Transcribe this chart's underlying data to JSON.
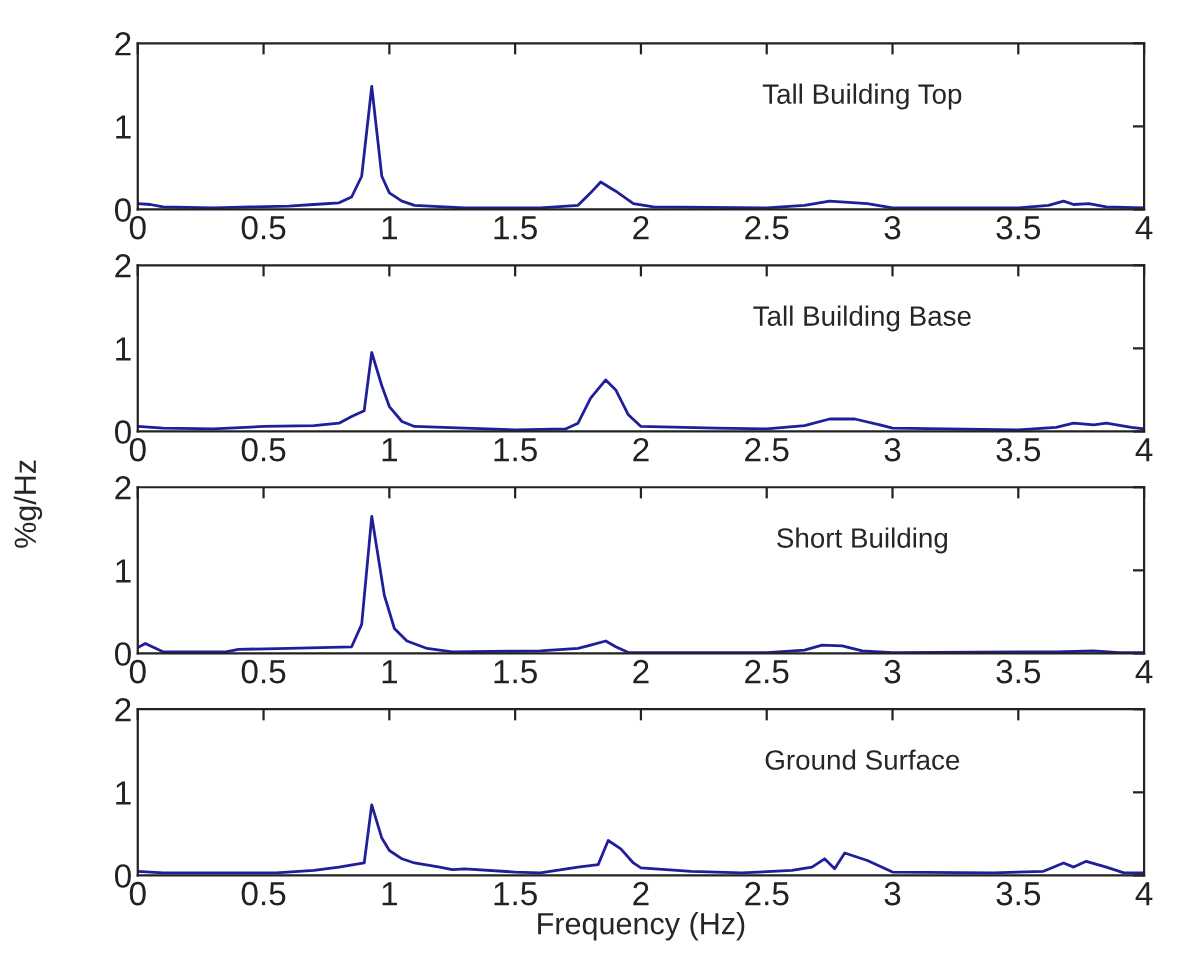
{
  "chart_data": [
    {
      "type": "line",
      "annotations": [
        "Tall Building Top"
      ],
      "xlim": [
        0,
        4
      ],
      "ylim": [
        0,
        2
      ],
      "xticks": [
        0,
        0.5,
        1,
        1.5,
        2,
        2.5,
        3,
        3.5,
        4
      ],
      "yticks": [
        0,
        1,
        2
      ],
      "grid": false,
      "series": [
        {
          "color": "#1f1f9a",
          "x": [
            0,
            0.05,
            0.1,
            0.3,
            0.45,
            0.6,
            0.7,
            0.8,
            0.85,
            0.89,
            0.93,
            0.97,
            1.0,
            1.05,
            1.1,
            1.3,
            1.6,
            1.75,
            1.8,
            1.84,
            1.9,
            1.97,
            2.05,
            2.5,
            2.65,
            2.75,
            2.9,
            3.0,
            3.5,
            3.62,
            3.68,
            3.72,
            3.78,
            3.85,
            4.0
          ],
          "values": [
            0.07,
            0.06,
            0.03,
            0.02,
            0.03,
            0.04,
            0.06,
            0.08,
            0.15,
            0.4,
            1.48,
            0.4,
            0.2,
            0.1,
            0.05,
            0.02,
            0.02,
            0.05,
            0.2,
            0.33,
            0.22,
            0.07,
            0.03,
            0.02,
            0.05,
            0.1,
            0.07,
            0.02,
            0.02,
            0.05,
            0.1,
            0.06,
            0.07,
            0.03,
            0.02
          ]
        }
      ]
    },
    {
      "type": "line",
      "annotations": [
        "Tall Building Base"
      ],
      "xlim": [
        0,
        4
      ],
      "ylim": [
        0,
        2
      ],
      "xticks": [
        0,
        0.5,
        1,
        1.5,
        2,
        2.5,
        3,
        3.5,
        4
      ],
      "yticks": [
        0,
        1,
        2
      ],
      "grid": false,
      "series": [
        {
          "color": "#1f1f9a",
          "x": [
            0,
            0.1,
            0.3,
            0.5,
            0.7,
            0.8,
            0.85,
            0.9,
            0.93,
            0.97,
            1.0,
            1.05,
            1.1,
            1.3,
            1.5,
            1.7,
            1.75,
            1.8,
            1.86,
            1.9,
            1.95,
            2.0,
            2.3,
            2.5,
            2.65,
            2.75,
            2.85,
            2.95,
            3.0,
            3.5,
            3.65,
            3.72,
            3.8,
            3.85,
            3.95,
            4.0
          ],
          "values": [
            0.06,
            0.04,
            0.03,
            0.06,
            0.07,
            0.1,
            0.18,
            0.25,
            0.95,
            0.55,
            0.3,
            0.12,
            0.06,
            0.04,
            0.02,
            0.03,
            0.1,
            0.4,
            0.62,
            0.5,
            0.2,
            0.06,
            0.04,
            0.03,
            0.07,
            0.15,
            0.15,
            0.08,
            0.04,
            0.02,
            0.05,
            0.1,
            0.08,
            0.1,
            0.05,
            0.03
          ]
        }
      ]
    },
    {
      "type": "line",
      "ylabel": "%g/Hz",
      "annotations": [
        "Short Building"
      ],
      "xlim": [
        0,
        4
      ],
      "ylim": [
        0,
        2
      ],
      "xticks": [
        0,
        0.5,
        1,
        1.5,
        2,
        2.5,
        3,
        3.5,
        4
      ],
      "yticks": [
        0,
        1,
        2
      ],
      "grid": false,
      "series": [
        {
          "color": "#1f1f9a",
          "x": [
            0,
            0.03,
            0.1,
            0.35,
            0.4,
            0.6,
            0.85,
            0.89,
            0.93,
            0.98,
            1.02,
            1.07,
            1.15,
            1.25,
            1.6,
            1.75,
            1.8,
            1.86,
            1.9,
            1.95,
            2.5,
            2.65,
            2.72,
            2.8,
            2.88,
            3.0,
            3.65,
            3.8,
            3.9,
            4.0
          ],
          "values": [
            0.07,
            0.12,
            0.02,
            0.02,
            0.05,
            0.06,
            0.08,
            0.35,
            1.65,
            0.7,
            0.3,
            0.15,
            0.06,
            0.02,
            0.03,
            0.06,
            0.1,
            0.15,
            0.08,
            0.01,
            0.01,
            0.04,
            0.1,
            0.09,
            0.03,
            0.01,
            0.02,
            0.03,
            0.01,
            0.01
          ]
        }
      ]
    },
    {
      "type": "line",
      "xlabel": "Frequency (Hz)",
      "annotations": [
        "Ground Surface"
      ],
      "xlim": [
        0,
        4
      ],
      "ylim": [
        0,
        2
      ],
      "xticks": [
        0,
        0.5,
        1,
        1.5,
        2,
        2.5,
        3,
        3.5,
        4
      ],
      "yticks": [
        0,
        1,
        2
      ],
      "grid": false,
      "series": [
        {
          "color": "#1f1f9a",
          "x": [
            0,
            0.1,
            0.55,
            0.7,
            0.8,
            0.9,
            0.93,
            0.97,
            1.0,
            1.05,
            1.1,
            1.2,
            1.25,
            1.3,
            1.5,
            1.6,
            1.75,
            1.83,
            1.87,
            1.92,
            1.97,
            2.0,
            2.2,
            2.4,
            2.6,
            2.68,
            2.73,
            2.77,
            2.81,
            2.9,
            3.0,
            3.4,
            3.6,
            3.68,
            3.72,
            3.77,
            3.85,
            3.92,
            4.0
          ],
          "values": [
            0.05,
            0.03,
            0.03,
            0.06,
            0.1,
            0.15,
            0.85,
            0.45,
            0.3,
            0.2,
            0.15,
            0.1,
            0.07,
            0.08,
            0.04,
            0.03,
            0.1,
            0.13,
            0.42,
            0.32,
            0.15,
            0.09,
            0.05,
            0.03,
            0.06,
            0.1,
            0.2,
            0.08,
            0.27,
            0.18,
            0.04,
            0.03,
            0.05,
            0.15,
            0.1,
            0.17,
            0.1,
            0.03,
            0.03
          ]
        }
      ]
    }
  ]
}
